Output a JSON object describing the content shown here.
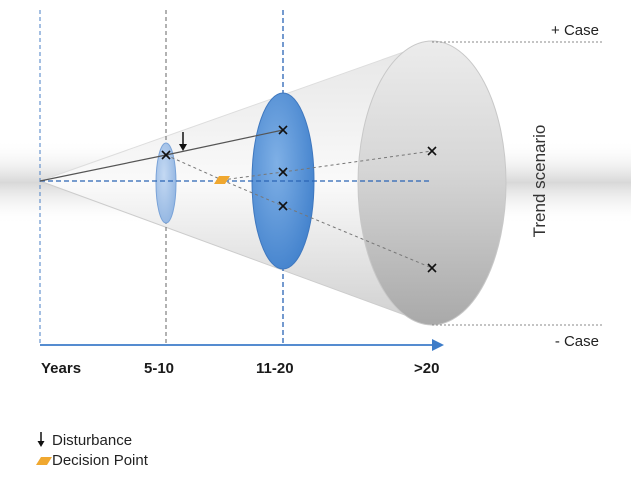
{
  "labels": {
    "years": "Years",
    "period_1": "5-10",
    "period_2": "11-20",
    "period_3": ">20",
    "plus_case": "+ Case",
    "minus_case": "- Case",
    "trend": "Trend scenario"
  },
  "legend": {
    "disturbance": "Disturbance",
    "decision_point": "Decision Point"
  },
  "colors": {
    "axis_blue": "#3d7cc9",
    "ellipse_blue": "#5b95d6",
    "ellipse_light": "#a9c6ea",
    "decision_orange": "#f0a830"
  }
}
